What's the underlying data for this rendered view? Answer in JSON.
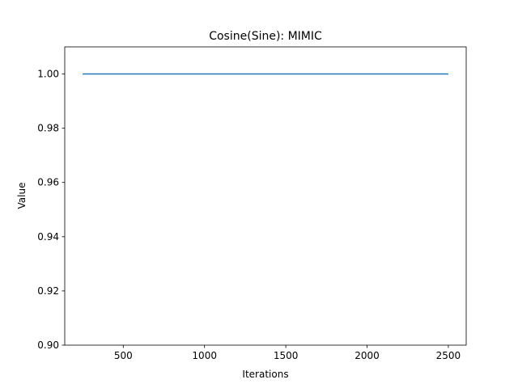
{
  "chart_data": {
    "type": "line",
    "title": "Cosine(Sine): MIMIC",
    "xlabel": "Iterations",
    "ylabel": "Value",
    "xlim": [
      140,
      2610
    ],
    "ylim": [
      0.9,
      1.01
    ],
    "xticks": [
      500,
      1000,
      1500,
      2000,
      2500
    ],
    "xtick_labels": [
      "500",
      "1000",
      "1500",
      "2000",
      "2500"
    ],
    "yticks": [
      0.9,
      0.92,
      0.94,
      0.96,
      0.98,
      1.0
    ],
    "ytick_labels": [
      "0.90",
      "0.92",
      "0.94",
      "0.96",
      "0.98",
      "1.00"
    ],
    "grid": false,
    "legend": "none",
    "series": [
      {
        "color": "#1f77b4",
        "x": [
          250,
          500,
          750,
          1000,
          1250,
          1500,
          1750,
          2000,
          2250,
          2500
        ],
        "values": [
          1.0,
          1.0,
          1.0,
          1.0,
          1.0,
          1.0,
          1.0,
          1.0,
          1.0,
          1.0
        ]
      }
    ]
  }
}
